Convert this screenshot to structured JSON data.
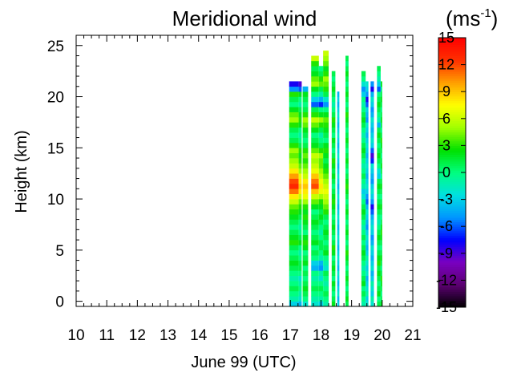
{
  "chart_data": {
    "type": "heatmap",
    "title": "Meridional wind",
    "xlabel": "June 99 (UTC)",
    "ylabel": "Height (km)",
    "xlim": [
      10,
      21
    ],
    "ylim": [
      -0.5,
      26
    ],
    "xticks": [
      "10",
      "11",
      "12",
      "13",
      "14",
      "15",
      "16",
      "17",
      "18",
      "19",
      "20",
      "21"
    ],
    "yticks": [
      "0",
      "5",
      "10",
      "15",
      "20",
      "25"
    ],
    "colorbar": {
      "unit_base": "(ms",
      "unit_exp": "-1",
      "unit_close": ")",
      "range": [
        -15,
        15
      ],
      "ticks": [
        "15",
        "12",
        "9",
        "6",
        "3",
        "0",
        "-3",
        "-6",
        "-9",
        "-12",
        "-15"
      ],
      "colors": [
        "#000000",
        "#5a0070",
        "#7a00c0",
        "#0000ff",
        "#0096ff",
        "#00e0e0",
        "#00ff80",
        "#00e000",
        "#a0ff00",
        "#ffff00",
        "#ffa000",
        "#ff3000",
        "#ff0000"
      ]
    },
    "height_step_km": 0.5,
    "blocks": [
      {
        "start": 16.96,
        "end": 17.27,
        "top_km": 21.5,
        "profile": [
          -3,
          -1,
          0,
          1,
          0,
          -1,
          0,
          1,
          2,
          1,
          0,
          1,
          3,
          2,
          1,
          0,
          1,
          2,
          3,
          4,
          6,
          8,
          11,
          13,
          12,
          10,
          8,
          6,
          5,
          4,
          5,
          3,
          1,
          0,
          1,
          3,
          5,
          4,
          2,
          0,
          1,
          3,
          -5,
          -8,
          -6,
          -2,
          0
        ]
      },
      {
        "start": 17.27,
        "end": 17.37,
        "top_km": 21.5,
        "profile": [
          -4,
          -2,
          -1,
          0,
          -1,
          -2,
          0,
          1,
          1,
          0,
          -1,
          0,
          2,
          1,
          0,
          -1,
          0,
          1,
          2,
          3,
          4,
          6,
          8,
          9,
          8,
          7,
          5,
          4,
          3,
          2,
          3,
          1,
          0,
          -1,
          0,
          2,
          3,
          2,
          1,
          -1,
          0,
          2,
          -6,
          -9,
          -7,
          -3,
          -1
        ]
      },
      {
        "start": 17.4,
        "end": 17.58,
        "top_km": 21.0,
        "profile": [
          -2,
          0,
          1,
          2,
          1,
          0,
          1,
          0,
          2,
          1,
          0,
          2,
          3,
          2,
          0,
          1,
          2,
          3,
          2,
          3,
          5,
          7,
          8,
          9,
          8,
          6,
          5,
          4,
          3,
          4,
          3,
          1,
          0,
          1,
          2,
          4,
          5,
          3,
          1,
          0,
          1,
          2,
          -4,
          -3
        ]
      },
      {
        "start": 17.68,
        "end": 17.93,
        "top_km": 24.0,
        "profile": [
          -2,
          -1,
          0,
          1,
          0,
          -1,
          0,
          -4,
          -3,
          0,
          1,
          0,
          2,
          1,
          0,
          1,
          2,
          1,
          0,
          2,
          4,
          6,
          9,
          12,
          11,
          9,
          7,
          6,
          5,
          6,
          4,
          2,
          1,
          0,
          2,
          4,
          6,
          3,
          1,
          -6,
          -3,
          0,
          2,
          5,
          4,
          2,
          1,
          3,
          6,
          8
        ]
      },
      {
        "start": 17.93,
        "end": 18.07,
        "top_km": 23.0,
        "profile": [
          -3,
          -1,
          0,
          1,
          0,
          -2,
          -1,
          -5,
          -4,
          -1,
          0,
          1,
          1,
          0,
          -1,
          0,
          1,
          2,
          1,
          2,
          3,
          5,
          7,
          8,
          7,
          6,
          5,
          4,
          4,
          5,
          3,
          1,
          0,
          -1,
          1,
          3,
          5,
          2,
          0,
          -7,
          -4,
          -1,
          1,
          4,
          3,
          1,
          0,
          2
        ]
      },
      {
        "start": 18.07,
        "end": 18.25,
        "top_km": 24.5,
        "profile": [
          -1,
          0,
          1,
          0,
          -1,
          0,
          1,
          -2,
          -1,
          0,
          2,
          1,
          0,
          1,
          2,
          1,
          0,
          1,
          3,
          4,
          5,
          6,
          7,
          6,
          5,
          4,
          3,
          2,
          1,
          2,
          3,
          2,
          0,
          1,
          2,
          3,
          4,
          2,
          0,
          -5,
          -2,
          1,
          3,
          4,
          5,
          3,
          2,
          4,
          5,
          6,
          7
        ]
      },
      {
        "start": 18.35,
        "end": 18.47,
        "top_km": 23.0,
        "profile": [
          2,
          1,
          0,
          1,
          2,
          0,
          1,
          2,
          1,
          0,
          2,
          3,
          1,
          0,
          1,
          2,
          1,
          0,
          1,
          2,
          3,
          2,
          1,
          0,
          1,
          2,
          1,
          2,
          3,
          1,
          0,
          1,
          2,
          0,
          1,
          2,
          3,
          1,
          0,
          -1,
          0,
          1,
          2,
          1,
          0,
          1
        ]
      },
      {
        "start": 18.53,
        "end": 18.6,
        "top_km": 21.0,
        "profile": [
          -3,
          -4,
          -2,
          -3,
          -4,
          -3,
          -2,
          -4,
          -3,
          -2,
          -3,
          -4,
          -3,
          -2,
          -3,
          -4,
          -3,
          -2,
          -3,
          -4,
          -3,
          -2,
          -3,
          -4,
          -3,
          -2,
          -3,
          -4,
          -3,
          -2,
          -3,
          -4,
          -3,
          -2,
          -3,
          -4,
          -3,
          -2,
          -3,
          -4,
          -3,
          -4
        ]
      },
      {
        "start": 18.8,
        "end": 18.9,
        "top_km": 24.5,
        "profile": [
          1,
          2,
          1,
          0,
          1,
          2,
          1,
          0,
          1,
          2,
          3,
          1,
          0,
          1,
          2,
          1,
          0,
          1,
          2,
          1,
          0,
          1,
          2,
          3,
          2,
          1,
          0,
          1,
          2,
          1,
          0,
          1,
          2,
          1,
          0,
          1,
          2,
          3,
          1,
          0,
          1,
          2,
          1,
          0,
          1,
          2,
          1,
          0,
          1
        ]
      },
      {
        "start": 19.32,
        "end": 19.46,
        "top_km": 23.0,
        "profile": [
          -1,
          0,
          1,
          0,
          2,
          1,
          0,
          -1,
          0,
          1,
          2,
          1,
          0,
          1,
          0,
          -1,
          0,
          1,
          2,
          1,
          0,
          -2,
          -3,
          -1,
          0,
          1,
          0,
          -1,
          0,
          1,
          2,
          1,
          0,
          -1,
          0,
          1,
          2,
          1,
          0,
          -1,
          0,
          -3,
          -5,
          -2,
          0,
          1
        ]
      },
      {
        "start": 19.46,
        "end": 19.55,
        "top_km": 22.0,
        "profile": [
          -2,
          -3,
          -1,
          -2,
          -3,
          -4,
          -2,
          -3,
          -2,
          -1,
          -3,
          -4,
          -3,
          -2,
          -3,
          -5,
          -4,
          -3,
          -2,
          -4,
          -6,
          -5,
          -3,
          -2,
          -3,
          -4,
          -3,
          -2,
          -3,
          -4,
          -3,
          -2,
          -3,
          -4,
          -3,
          -2,
          -5,
          -4,
          -3,
          -6,
          -8,
          -5,
          -3,
          -2
        ]
      },
      {
        "start": 19.62,
        "end": 19.73,
        "top_km": 22.0,
        "profile": [
          -2,
          -1,
          -3,
          -2,
          -1,
          -3,
          -4,
          -2,
          -3,
          -4,
          -3,
          -2,
          -4,
          -5,
          -3,
          -2,
          -3,
          -4,
          -6,
          -8,
          -5,
          -3,
          -2,
          -3,
          -5,
          -4,
          -3,
          -2,
          -7,
          -9,
          -6,
          -3,
          -2,
          -3,
          -4,
          -3,
          -2,
          -4,
          -5,
          -3,
          -2,
          -4,
          -8,
          -5
        ]
      },
      {
        "start": 19.83,
        "end": 19.95,
        "top_km": 23.5,
        "profile": [
          1,
          0,
          2,
          1,
          0,
          1,
          2,
          1,
          3,
          2,
          1,
          0,
          1,
          2,
          1,
          0,
          -1,
          0,
          1,
          2,
          1,
          0,
          1,
          2,
          1,
          -3,
          -2,
          0,
          1,
          2,
          1,
          0,
          1,
          2,
          1,
          -4,
          -1,
          0,
          1,
          2,
          1,
          0,
          -6,
          -3,
          -1,
          0,
          1
        ]
      },
      {
        "start": 19.95,
        "end": 20.0,
        "top_km": 22.0,
        "profile": [
          2,
          1,
          0,
          1,
          2,
          3,
          1,
          0,
          1,
          2,
          1,
          0,
          1,
          2,
          3,
          2,
          1,
          0,
          1,
          2,
          1,
          0,
          1,
          2,
          1,
          0,
          1,
          2,
          1,
          0,
          1,
          2,
          3,
          1,
          0,
          1,
          2,
          1,
          0,
          1,
          2,
          1,
          0,
          2
        ]
      }
    ]
  }
}
